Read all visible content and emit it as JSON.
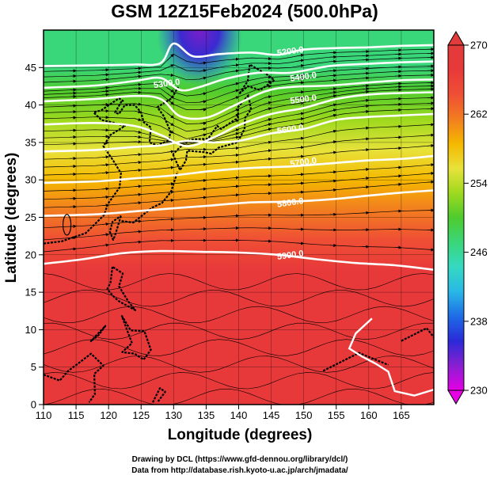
{
  "title": "GSM 12Z15Feb2024 (500.0hPa)",
  "credits": {
    "line1": "Drawing by DCL (https://www.gfd-dennou.org/library/dcl/)",
    "line2": "Data from http://database.rish.kyoto-u.ac.jp/arch/jmadata/"
  },
  "colorbar": {
    "min": 230,
    "max": 270,
    "ticks": [
      230,
      238,
      246,
      254,
      262,
      270
    ],
    "colors": [
      "#e600e6",
      "#8a1fd0",
      "#2a2ad8",
      "#1e6be6",
      "#29b8e6",
      "#35d9c2",
      "#3ad67a",
      "#4ecb2e",
      "#9ed91e",
      "#e8e23a",
      "#f5b800",
      "#f27d20",
      "#ef4f35",
      "#e8393a",
      "#e23b3b"
    ]
  },
  "chart_data": {
    "type": "heatmap",
    "title": "GSM 12Z15Feb2024 (500.0hPa)",
    "xlabel": "Longitude (degrees)",
    "ylabel": "Latitude  (degrees)",
    "xlim": [
      110,
      170
    ],
    "ylim": [
      0,
      50
    ],
    "xticks": [
      110,
      115,
      120,
      125,
      130,
      135,
      140,
      145,
      150,
      155,
      160,
      165
    ],
    "yticks": [
      0,
      5,
      10,
      15,
      20,
      25,
      30,
      35,
      40,
      45
    ],
    "grid": true,
    "temperature_field": [
      {
        "lat": 49,
        "temp": 246
      },
      {
        "lat": 45,
        "temp": 246
      },
      {
        "lat": 42,
        "temp": 250
      },
      {
        "lat": 38,
        "temp": 254
      },
      {
        "lat": 34,
        "temp": 255
      },
      {
        "lat": 30,
        "temp": 258
      },
      {
        "lat": 26,
        "temp": 262
      },
      {
        "lat": 22,
        "temp": 264
      },
      {
        "lat": 18,
        "temp": 268
      },
      {
        "lat": 0,
        "temp": 268
      }
    ],
    "trough": {
      "lon": 132,
      "lat": 46,
      "temp": 232
    },
    "contours": [
      {
        "label": "5200.0",
        "label_lon": 148,
        "label_lat": 46.8,
        "points": [
          [
            110,
            45.2
          ],
          [
            118,
            45.3
          ],
          [
            124,
            45.4
          ],
          [
            128,
            45.6
          ],
          [
            130,
            48.2
          ],
          [
            133,
            46.5
          ],
          [
            137,
            46.8
          ],
          [
            142,
            47.0
          ],
          [
            146,
            46.7
          ],
          [
            150,
            47.4
          ],
          [
            155,
            47.6
          ],
          [
            160,
            47.7
          ],
          [
            165,
            47.9
          ],
          [
            170,
            48.0
          ]
        ]
      },
      {
        "label": "5300.0",
        "label_lon": 129,
        "label_lat": 42.5,
        "points": [
          [
            110,
            42.3
          ],
          [
            118,
            42.6
          ],
          [
            124,
            43.2
          ],
          [
            128,
            43.6
          ],
          [
            131,
            42.0
          ],
          [
            134,
            42.4
          ],
          [
            138,
            43.5
          ],
          [
            143,
            44.3
          ],
          [
            148,
            44.3
          ],
          [
            154,
            45.2
          ],
          [
            160,
            45.5
          ],
          [
            165,
            45.7
          ],
          [
            170,
            45.8
          ]
        ]
      },
      {
        "label": "5400.0",
        "label_lon": 150,
        "label_lat": 43.4,
        "points": [
          [
            110,
            40.5
          ],
          [
            118,
            40.8
          ],
          [
            124,
            41.2
          ],
          [
            128,
            40.8
          ],
          [
            131,
            38.5
          ],
          [
            135,
            38.3
          ],
          [
            139,
            39.8
          ],
          [
            144,
            41.8
          ],
          [
            148,
            42.4
          ],
          [
            154,
            42.6
          ],
          [
            160,
            43.0
          ],
          [
            165,
            43.3
          ],
          [
            170,
            43.4
          ]
        ]
      },
      {
        "label": "5500.0",
        "label_lon": 150,
        "label_lat": 40.4,
        "points": [
          [
            110,
            37.4
          ],
          [
            118,
            37.6
          ],
          [
            124,
            37.2
          ],
          [
            128,
            36.0
          ],
          [
            132,
            34.5
          ],
          [
            136,
            35.6
          ],
          [
            140,
            37.3
          ],
          [
            145,
            38.8
          ],
          [
            150,
            39.6
          ],
          [
            155,
            40.8
          ],
          [
            160,
            41.4
          ],
          [
            165,
            41.6
          ],
          [
            170,
            41.7
          ]
        ]
      },
      {
        "label": "5600.0",
        "label_lon": 148,
        "label_lat": 36.4,
        "points": [
          [
            110,
            33.8
          ],
          [
            118,
            34.0
          ],
          [
            124,
            34.4
          ],
          [
            128,
            34.6
          ],
          [
            132,
            35.2
          ],
          [
            136,
            35.0
          ],
          [
            140,
            35.2
          ],
          [
            145,
            36.2
          ],
          [
            150,
            36.8
          ],
          [
            155,
            38.0
          ],
          [
            160,
            38.4
          ],
          [
            165,
            38.6
          ],
          [
            170,
            38.8
          ]
        ]
      },
      {
        "label": "5700.0",
        "label_lon": 150,
        "label_lat": 32.0,
        "points": [
          [
            110,
            29.6
          ],
          [
            118,
            29.8
          ],
          [
            124,
            30.2
          ],
          [
            130,
            30.6
          ],
          [
            136,
            31.2
          ],
          [
            142,
            31.6
          ],
          [
            148,
            31.8
          ],
          [
            154,
            32.2
          ],
          [
            160,
            32.6
          ],
          [
            165,
            32.8
          ],
          [
            170,
            33.2
          ]
        ]
      },
      {
        "label": "5800.0",
        "label_lon": 148,
        "label_lat": 26.6,
        "points": [
          [
            110,
            25.2
          ],
          [
            118,
            25.4
          ],
          [
            124,
            25.8
          ],
          [
            130,
            26.2
          ],
          [
            136,
            26.6
          ],
          [
            142,
            27.0
          ],
          [
            148,
            27.1
          ],
          [
            154,
            27.4
          ],
          [
            160,
            27.9
          ],
          [
            165,
            28.3
          ],
          [
            170,
            28.6
          ]
        ]
      },
      {
        "label": "5900.0",
        "label_lon": 148,
        "label_lat": 19.6,
        "points": [
          [
            110,
            18.8
          ],
          [
            116,
            19.4
          ],
          [
            122,
            20.2
          ],
          [
            128,
            20.5
          ],
          [
            134,
            20.4
          ],
          [
            140,
            20.3
          ],
          [
            146,
            20.0
          ],
          [
            152,
            19.4
          ],
          [
            158,
            18.9
          ],
          [
            164,
            18.6
          ],
          [
            170,
            18.0
          ]
        ]
      }
    ]
  }
}
